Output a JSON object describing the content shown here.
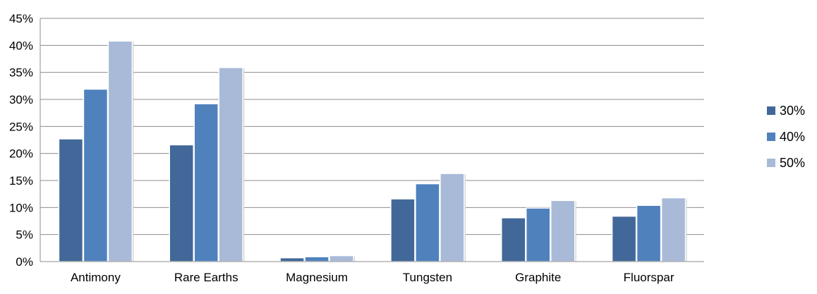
{
  "chart_data": {
    "type": "bar",
    "title": "",
    "xlabel": "",
    "ylabel": "",
    "ylim": [
      0,
      0.45
    ],
    "yticks": [
      "0%",
      "5%",
      "10%",
      "15%",
      "20%",
      "25%",
      "30%",
      "35%",
      "40%",
      "45%"
    ],
    "ytick_values": [
      0,
      0.05,
      0.1,
      0.15,
      0.2,
      0.25,
      0.3,
      0.35,
      0.4,
      0.45
    ],
    "grid": true,
    "legend_position": "right",
    "categories": [
      "Antimony",
      "Rare Earths",
      "Magnesium",
      "Tungsten",
      "Graphite",
      "Fluorspar"
    ],
    "series": [
      {
        "name": "30%",
        "color": "#416899",
        "values": [
          0.227,
          0.216,
          0.007,
          0.116,
          0.081,
          0.084
        ]
      },
      {
        "name": "40%",
        "color": "#4f81bd",
        "values": [
          0.319,
          0.292,
          0.009,
          0.144,
          0.099,
          0.104
        ]
      },
      {
        "name": "50%",
        "color": "#a9bad8",
        "values": [
          0.408,
          0.359,
          0.011,
          0.163,
          0.113,
          0.118
        ]
      }
    ]
  }
}
